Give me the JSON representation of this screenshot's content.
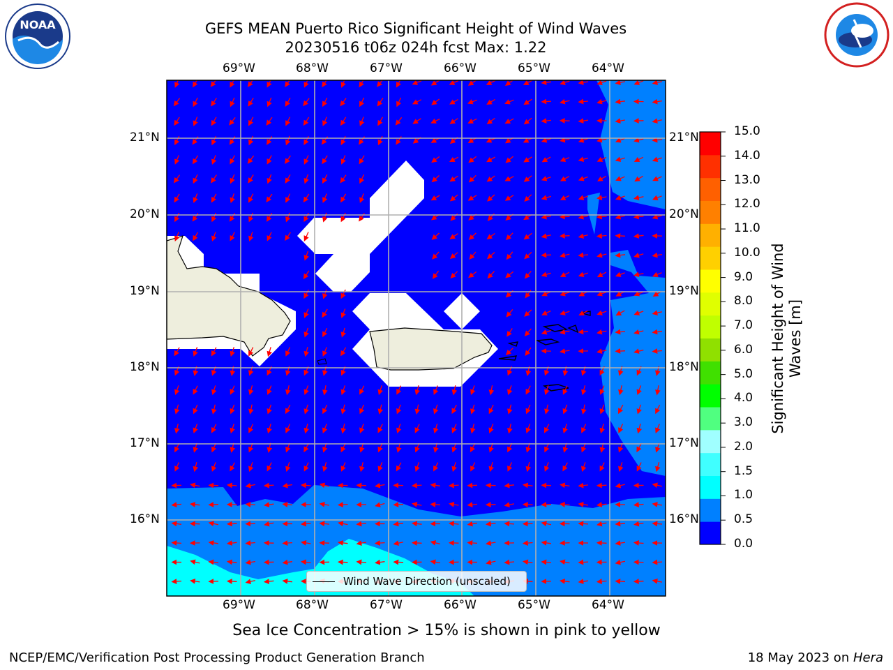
{
  "header": {
    "title_line1": "GEFS MEAN Puerto Rico Significant Height of Wind Waves",
    "title_line2": "20230516 t06z 024h fcst   Max: 1.22"
  },
  "logos": {
    "left": "noaa-logo",
    "right": "national-weather-service-logo",
    "left_text": "NOAA"
  },
  "map": {
    "lon_ticks": [
      "69°W",
      "68°W",
      "67°W",
      "66°W",
      "65°W",
      "64°W"
    ],
    "lat_ticks": [
      "21°N",
      "20°N",
      "19°N",
      "18°N",
      "17°N",
      "16°N"
    ],
    "legend_label": "Wind Wave Direction (unscaled)",
    "colors": {
      "ocean_low": "#0000ff",
      "ocean_mid": "#0080ff",
      "ocean_high": "#00ffff",
      "land": "#eeeedd",
      "arrow": "#ff0000",
      "grid": "#b0b0b0"
    }
  },
  "colorbar": {
    "title": "Significant Height of Wind Waves [m]",
    "ticks": [
      "15.0",
      "14.0",
      "13.0",
      "12.0",
      "11.0",
      "10.0",
      "9.0",
      "8.0",
      "7.0",
      "6.0",
      "5.0",
      "4.0",
      "3.0",
      "2.0",
      "1.5",
      "1.0",
      "0.5",
      "0.0"
    ],
    "colors": [
      "#0000ff",
      "#0080ff",
      "#00ffff",
      "#40ffff",
      "#a0ffff",
      "#50ff80",
      "#00ff00",
      "#40e000",
      "#90e000",
      "#c0ff00",
      "#e0ff00",
      "#ffff00",
      "#ffd000",
      "#ffb000",
      "#ff8000",
      "#ff6000",
      "#ff3000",
      "#ff0000"
    ]
  },
  "footer": {
    "note": "Sea Ice Concentration > 15% is shown in pink to yellow",
    "producer": "NCEP/EMC/Verification Post Processing Product Generation Branch",
    "date": "18 May 2023 on ",
    "machine": "Hera"
  }
}
